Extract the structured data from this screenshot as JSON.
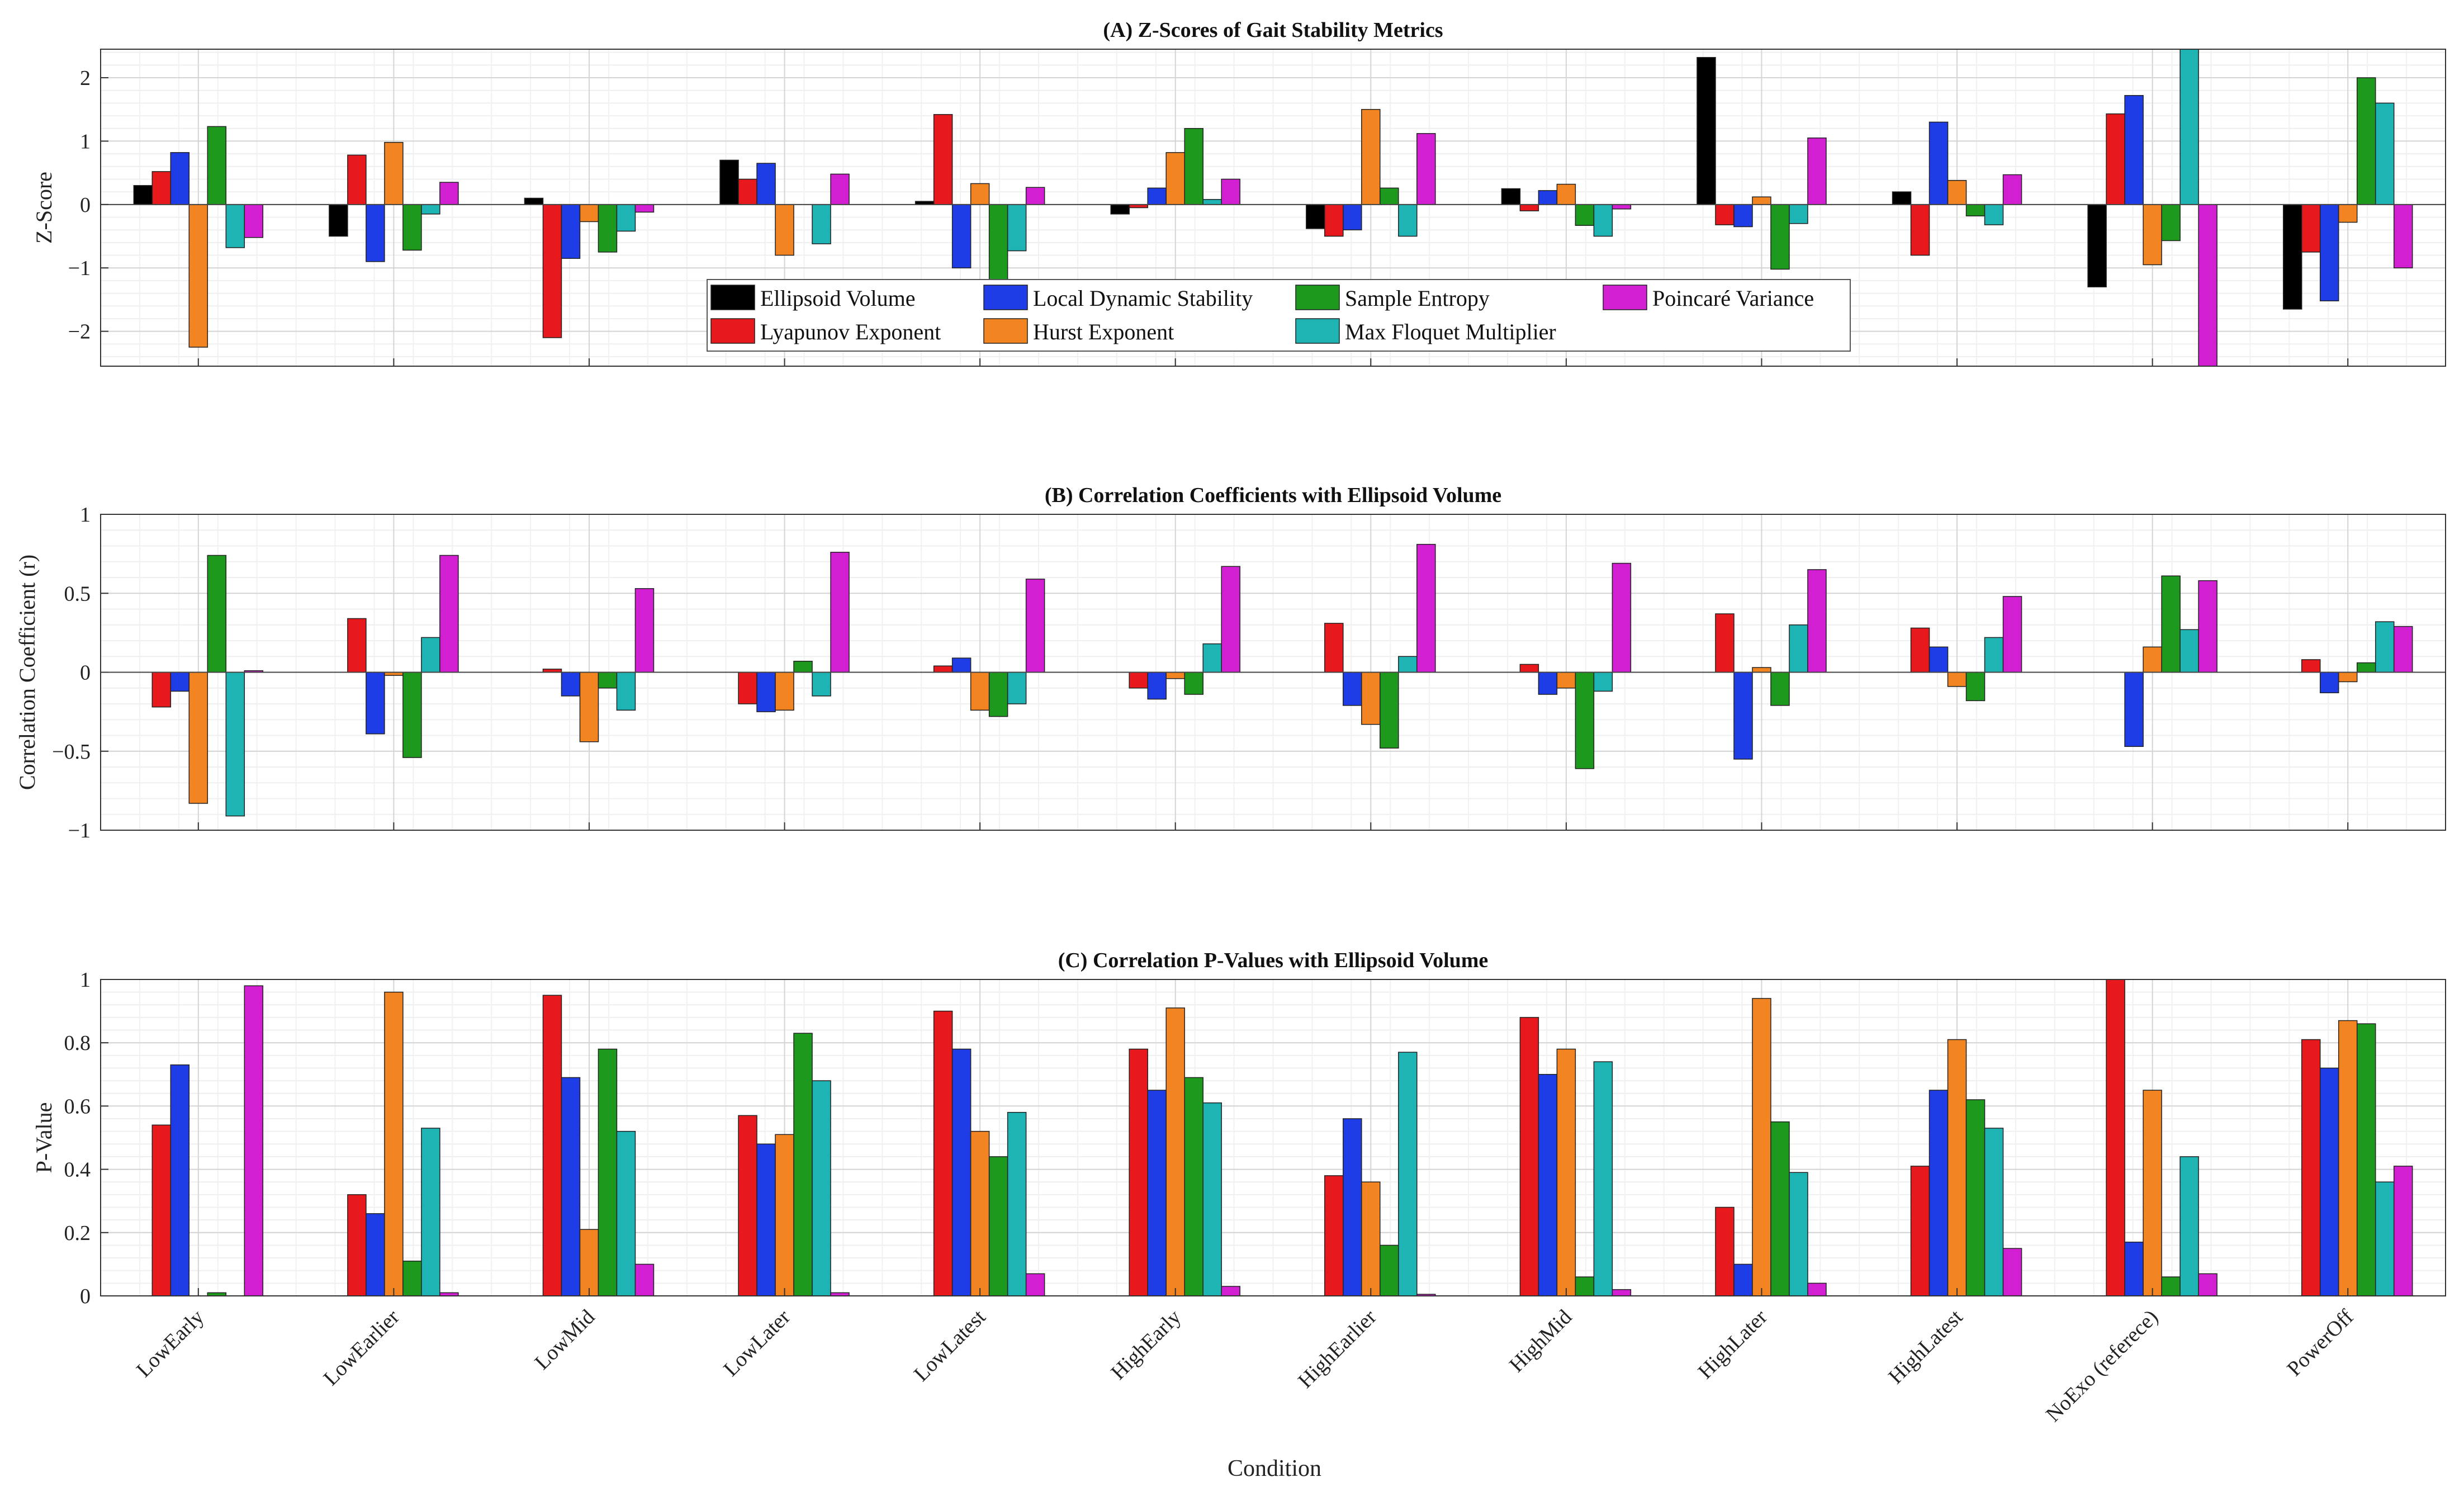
{
  "chart_data": {
    "type": "bar",
    "categories": [
      "LowEarly",
      "LowEarlier",
      "LowMid",
      "LowLater",
      "LowLatest",
      "HighEarly",
      "HighEarlier",
      "HighMid",
      "HighLater",
      "HighLatest",
      "NoExo (referece)",
      "PowerOff"
    ],
    "xlabel": "Condition",
    "colors": [
      "#000000",
      "#e8191c",
      "#1f3de6",
      "#f28522",
      "#1d9a1d",
      "#1fb4b4",
      "#d21fd2"
    ],
    "panels": [
      {
        "title": "(A) Z-Scores of Gait Stability Metrics",
        "ylabel": "Z-Score",
        "ylim": [
          -2.55,
          2.45
        ],
        "yticks": [
          -2,
          -1,
          0,
          1,
          2
        ],
        "ytick_labels": [
          "−2",
          "−1",
          "0",
          "1",
          "2"
        ],
        "series": [
          {
            "name": "Ellipsoid Volume",
            "values": [
              0.3,
              -0.5,
              0.1,
              0.7,
              0.05,
              -0.15,
              -0.38,
              0.25,
              2.32,
              0.2,
              -1.3,
              -1.65
            ]
          },
          {
            "name": "Lyapunov Exponent",
            "values": [
              0.52,
              0.78,
              -2.1,
              0.4,
              1.42,
              -0.05,
              -0.5,
              -0.1,
              -0.32,
              -0.8,
              1.43,
              -0.75
            ]
          },
          {
            "name": "Local Dynamic Stability",
            "values": [
              0.82,
              -0.9,
              -0.85,
              0.65,
              -1.0,
              0.26,
              -0.4,
              0.22,
              -0.35,
              1.3,
              1.72,
              -1.52
            ]
          },
          {
            "name": "Hurst Exponent",
            "values": [
              -2.25,
              0.98,
              -0.27,
              -0.8,
              0.33,
              0.82,
              1.5,
              0.32,
              0.12,
              0.38,
              -0.95,
              -0.28
            ]
          },
          {
            "name": "Sample Entropy",
            "values": [
              1.23,
              -0.72,
              -0.75,
              0.0,
              -1.2,
              1.2,
              0.26,
              -0.33,
              -1.02,
              -0.18,
              -0.57,
              2.0
            ]
          },
          {
            "name": "Max Floquet Multiplier",
            "values": [
              -0.68,
              -0.15,
              -0.42,
              -0.62,
              -0.73,
              0.08,
              -0.5,
              -0.5,
              -0.3,
              -0.32,
              2.45,
              1.6
            ]
          },
          {
            "name": "Poincaré Variance",
            "values": [
              -0.52,
              0.35,
              -0.12,
              0.48,
              0.27,
              0.4,
              1.12,
              -0.07,
              1.05,
              0.47,
              -2.6,
              -1.0
            ]
          }
        ],
        "legend": {
          "position": "lower-center",
          "entries": [
            "Ellipsoid Volume",
            "Lyapunov Exponent",
            "Local Dynamic Stability",
            "Hurst Exponent",
            "Sample Entropy",
            "Max Floquet Multiplier",
            "Poincaré Variance"
          ]
        }
      },
      {
        "title": "(B) Correlation Coefficients with Ellipsoid Volume",
        "ylabel": "Correlation Coefficient (r)",
        "ylim": [
          -1,
          1
        ],
        "yticks": [
          -1,
          -0.5,
          0,
          0.5,
          1
        ],
        "ytick_labels": [
          "−1",
          "−0.5",
          "0",
          "0.5",
          "1"
        ],
        "series": [
          {
            "name": "Ellipsoid Volume",
            "values": [
              0,
              0,
              0,
              0,
              0,
              0,
              0,
              0,
              0,
              0,
              0,
              0
            ]
          },
          {
            "name": "Lyapunov Exponent",
            "values": [
              -0.22,
              0.34,
              0.02,
              -0.2,
              0.04,
              -0.1,
              0.31,
              0.05,
              0.37,
              0.28,
              0.0,
              0.08
            ]
          },
          {
            "name": "Local Dynamic Stability",
            "values": [
              -0.12,
              -0.39,
              -0.15,
              -0.25,
              0.09,
              -0.17,
              -0.21,
              -0.14,
              -0.55,
              0.16,
              -0.47,
              -0.13
            ]
          },
          {
            "name": "Hurst Exponent",
            "values": [
              -0.83,
              -0.02,
              -0.44,
              -0.24,
              -0.24,
              -0.04,
              -0.33,
              -0.1,
              0.03,
              -0.09,
              0.16,
              -0.06
            ]
          },
          {
            "name": "Sample Entropy",
            "values": [
              0.74,
              -0.54,
              -0.1,
              0.07,
              -0.28,
              -0.14,
              -0.48,
              -0.61,
              -0.21,
              -0.18,
              0.61,
              0.06
            ]
          },
          {
            "name": "Max Floquet Multiplier",
            "values": [
              -0.91,
              0.22,
              -0.24,
              -0.15,
              -0.2,
              0.18,
              0.1,
              -0.12,
              0.3,
              0.22,
              0.27,
              0.32
            ]
          },
          {
            "name": "Poincaré Variance",
            "values": [
              0.01,
              0.74,
              0.53,
              0.76,
              0.59,
              0.67,
              0.81,
              0.69,
              0.65,
              0.48,
              0.58,
              0.29
            ]
          }
        ]
      },
      {
        "title": "(C) Correlation P-Values with Ellipsoid Volume",
        "ylabel": "P-Value",
        "ylim": [
          0,
          1
        ],
        "yticks": [
          0,
          0.2,
          0.4,
          0.6,
          0.8,
          1
        ],
        "ytick_labels": [
          "0",
          "0.2",
          "0.4",
          "0.6",
          "0.8",
          "1"
        ],
        "series": [
          {
            "name": "Ellipsoid Volume",
            "values": [
              0,
              0,
              0,
              0,
              0,
              0,
              0,
              0,
              0,
              0,
              0,
              0
            ]
          },
          {
            "name": "Lyapunov Exponent",
            "values": [
              0.54,
              0.32,
              0.95,
              0.57,
              0.9,
              0.78,
              0.38,
              0.88,
              0.28,
              0.41,
              1.0,
              0.81
            ]
          },
          {
            "name": "Local Dynamic Stability",
            "values": [
              0.73,
              0.26,
              0.69,
              0.48,
              0.78,
              0.65,
              0.56,
              0.7,
              0.1,
              0.65,
              0.17,
              0.72
            ]
          },
          {
            "name": "Hurst Exponent",
            "values": [
              0.0,
              0.96,
              0.21,
              0.51,
              0.52,
              0.91,
              0.36,
              0.78,
              0.94,
              0.81,
              0.65,
              0.87
            ]
          },
          {
            "name": "Sample Entropy",
            "values": [
              0.01,
              0.11,
              0.78,
              0.83,
              0.44,
              0.69,
              0.16,
              0.06,
              0.55,
              0.62,
              0.06,
              0.86
            ]
          },
          {
            "name": "Max Floquet Multiplier",
            "values": [
              0.0,
              0.53,
              0.52,
              0.68,
              0.58,
              0.61,
              0.77,
              0.74,
              0.39,
              0.53,
              0.44,
              0.36
            ]
          },
          {
            "name": "Poincaré Variance",
            "values": [
              0.98,
              0.01,
              0.1,
              0.01,
              0.07,
              0.03,
              0.005,
              0.02,
              0.04,
              0.15,
              0.07,
              0.41
            ]
          }
        ]
      }
    ]
  }
}
